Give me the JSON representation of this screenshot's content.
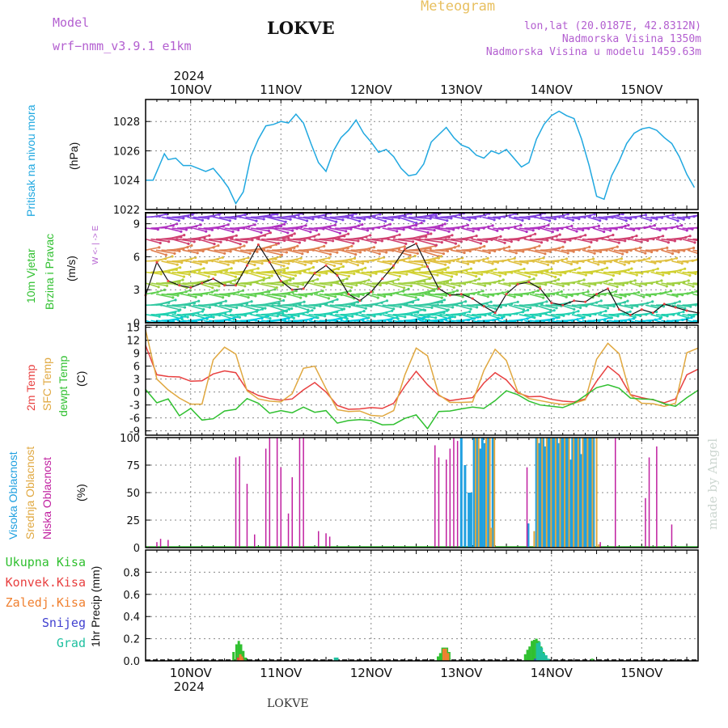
{
  "header": {
    "model_label": "Model",
    "model_name": "wrf−nmm_v3.9.1  e1km",
    "title": "LOKVE",
    "meteogram_label": "Meteogram",
    "lonlat": "lon,lat (20.0187E, 42.8312N)",
    "altitude": "Nadmorska Visina 1350m",
    "model_altitude": "Nadmorska Visina u modelu 1459.63m",
    "credit": "made by Angel",
    "footer_station": "LOKVE"
  },
  "colors": {
    "pressure": "#20a8e0",
    "t2m": "#e84040",
    "sfc": "#e0a840",
    "dewpt": "#30c030",
    "high_cloud": "#20a0e0",
    "mid_cloud": "#e0a840",
    "low_cloud": "#c020a0",
    "total_precip": "#30c030",
    "conv_precip": "#e84040",
    "frozen_precip": "#f08030",
    "snow": "#4040d0",
    "graupel": "#20c0a0"
  },
  "chart_data": [
    {
      "type": "line",
      "panel": "pressure",
      "ylabel_lines": [
        "Pritisak na nivou mora",
        "(hPa)"
      ],
      "year_label": "2024",
      "day_labels": [
        "10NOV",
        "11NOV",
        "12NOV",
        "13NOV",
        "14NOV",
        "15NOV"
      ],
      "day_label_hours": [
        12,
        36,
        60,
        84,
        108,
        132
      ],
      "x_hours_range": [
        0,
        147
      ],
      "ylim": [
        1022,
        1029.5
      ],
      "yticks": [
        1022,
        1024,
        1026,
        1028
      ],
      "x_hours": [
        0,
        2,
        4,
        5,
        6,
        8,
        10,
        12,
        14,
        16,
        18,
        20,
        22,
        24,
        26,
        28,
        30,
        32,
        34,
        36,
        38,
        40,
        42,
        44,
        46,
        48,
        50,
        52,
        54,
        56,
        58,
        60,
        62,
        64,
        66,
        68,
        70,
        72,
        74,
        76,
        78,
        80,
        82,
        84,
        86,
        88,
        90,
        92,
        94,
        96,
        98,
        100,
        102,
        104,
        106,
        108,
        110,
        112,
        114,
        116,
        118,
        120,
        122,
        124,
        126,
        128,
        130,
        132,
        134,
        136,
        138,
        140,
        142,
        144,
        146
      ],
      "values": [
        1024.0,
        1024.0,
        1025.2,
        1025.8,
        1025.4,
        1025.5,
        1025.0,
        1025.0,
        1024.8,
        1024.6,
        1024.8,
        1024.2,
        1023.5,
        1022.4,
        1023.2,
        1025.6,
        1026.8,
        1027.7,
        1027.8,
        1028.0,
        1027.9,
        1028.5,
        1027.9,
        1026.5,
        1025.2,
        1024.6,
        1026.0,
        1026.9,
        1027.4,
        1028.1,
        1027.2,
        1026.6,
        1025.9,
        1026.1,
        1025.6,
        1024.8,
        1024.3,
        1024.4,
        1025.1,
        1026.6,
        1027.1,
        1027.6,
        1026.9,
        1026.4,
        1026.2,
        1025.7,
        1025.5,
        1026.0,
        1025.8,
        1026.1,
        1025.5,
        1024.9,
        1025.2,
        1026.8,
        1027.8,
        1028.4,
        1028.7,
        1028.4,
        1028.2,
        1026.8,
        1025.0,
        1022.9,
        1022.7,
        1024.3,
        1025.3,
        1026.5,
        1027.2,
        1027.5,
        1027.6,
        1027.4,
        1026.9,
        1026.5,
        1025.6,
        1024.4,
        1023.5
      ]
    },
    {
      "type": "line",
      "panel": "wind",
      "ylabel_lines": [
        "10m Vjetar",
        "Brzina i Pravac",
        "(m/s)"
      ],
      "direction_legend": "W <- | -> E",
      "ylim": [
        0,
        10
      ],
      "yticks": [
        0,
        3,
        6,
        9
      ],
      "x_hours": [
        0,
        3,
        6,
        9,
        12,
        15,
        18,
        21,
        24,
        27,
        30,
        33,
        36,
        39,
        42,
        45,
        48,
        51,
        54,
        57,
        60,
        63,
        66,
        69,
        72,
        75,
        78,
        81,
        84,
        87,
        90,
        93,
        96,
        99,
        102,
        105,
        108,
        111,
        114,
        117,
        120,
        123,
        126,
        129,
        132,
        135,
        138,
        141,
        144,
        147
      ],
      "values": [
        2.5,
        5.5,
        3.8,
        3.4,
        3.2,
        3.6,
        4.0,
        3.4,
        3.4,
        5.2,
        7.1,
        5.5,
        3.8,
        3.0,
        3.1,
        4.5,
        5.2,
        4.3,
        2.6,
        2.0,
        2.8,
        4.0,
        5.2,
        6.7,
        7.2,
        5.1,
        3.1,
        2.5,
        2.6,
        2.2,
        1.5,
        0.9,
        2.6,
        3.5,
        3.7,
        3.1,
        1.8,
        1.6,
        2.0,
        1.9,
        2.6,
        3.1,
        1.2,
        0.7,
        1.2,
        0.9,
        1.7,
        1.4,
        1.1,
        0.9
      ]
    },
    {
      "type": "line",
      "panel": "temperature",
      "ylabel_lines": [
        "2m Temp",
        "SFC Temp",
        "dewpt Temp",
        "(C)"
      ],
      "ylim": [
        -10,
        15.5
      ],
      "yticks": [
        -9,
        -6,
        -3,
        0,
        3,
        6,
        9,
        12,
        15
      ],
      "x_hours": [
        0,
        3,
        6,
        9,
        12,
        15,
        18,
        21,
        24,
        27,
        30,
        33,
        36,
        39,
        42,
        45,
        48,
        51,
        54,
        57,
        60,
        63,
        66,
        69,
        72,
        75,
        78,
        81,
        84,
        87,
        90,
        93,
        96,
        99,
        102,
        105,
        108,
        111,
        114,
        117,
        120,
        123,
        126,
        129,
        132,
        135,
        138,
        141,
        144,
        147
      ],
      "series": [
        {
          "name": "2m Temp",
          "values": [
            10.8,
            4.0,
            3.6,
            3.5,
            2.5,
            2.6,
            4.2,
            4.9,
            4.5,
            0.5,
            -0.8,
            -1.5,
            -1.9,
            -1.6,
            0.5,
            2.2,
            0.0,
            -3.1,
            -4.0,
            -3.9,
            -3.6,
            -3.8,
            -2.6,
            1.4,
            4.8,
            1.7,
            -0.8,
            -2.0,
            -1.6,
            -1.3,
            2.1,
            4.5,
            2.8,
            -0.2,
            -1.1,
            -1.0,
            -1.7,
            -2.1,
            -2.3,
            -1.6,
            2.5,
            6.0,
            3.9,
            -0.6,
            -1.3,
            -1.8,
            -2.5,
            -1.6,
            4.0,
            5.3
          ]
        },
        {
          "name": "SFC Temp",
          "values": [
            14.4,
            3.0,
            0.5,
            -1.4,
            -2.8,
            -2.8,
            7.5,
            10.4,
            8.8,
            0.3,
            -1.6,
            -2.1,
            -2.3,
            -0.4,
            5.5,
            6.0,
            0.8,
            -4.1,
            -4.5,
            -4.4,
            -5.4,
            -5.6,
            -4.3,
            4.0,
            10.2,
            8.4,
            -0.6,
            -2.4,
            -2.4,
            -2.3,
            5.0,
            9.9,
            7.3,
            0.1,
            -1.5,
            -2.0,
            -2.5,
            -2.9,
            -2.6,
            -1.8,
            7.6,
            11.3,
            8.9,
            -0.7,
            -2.6,
            -2.7,
            -3.3,
            -2.6,
            9.1,
            10.2
          ]
        },
        {
          "name": "dewpt Temp",
          "values": [
            0.6,
            -2.5,
            -1.6,
            -5.5,
            -3.8,
            -6.5,
            -6.2,
            -4.4,
            -4.0,
            -1.5,
            -2.6,
            -4.9,
            -4.3,
            -4.8,
            -3.5,
            -4.7,
            -4.3,
            -7.2,
            -6.6,
            -6.4,
            -6.6,
            -7.6,
            -7.5,
            -6.1,
            -5.3,
            -8.5,
            -4.5,
            -4.4,
            -3.9,
            -3.5,
            -3.8,
            -2.0,
            0.3,
            -0.6,
            -2.1,
            -3.0,
            -3.3,
            -3.6,
            -2.6,
            -0.8,
            1.0,
            1.7,
            0.9,
            -1.4,
            -1.6,
            -1.7,
            -2.7,
            -3.3,
            -1.3,
            0.4
          ]
        }
      ]
    },
    {
      "type": "bar",
      "panel": "cloud",
      "ylabel_lines": [
        "Visoka Oblacnost",
        "Srednja Oblacnost",
        "Niska Oblacnost",
        "(%)"
      ],
      "ylim": [
        0,
        100
      ],
      "yticks": [
        0,
        25,
        50,
        75,
        100
      ],
      "series": [
        {
          "name": "Visoka Oblacnost",
          "bars": [
            [
              84,
              100
            ],
            [
              85,
              75
            ],
            [
              86,
              50
            ],
            [
              86.6,
              50
            ],
            [
              87.4,
              100
            ],
            [
              88.2,
              100
            ],
            [
              89,
              90
            ],
            [
              89.6,
              100
            ],
            [
              90.2,
              95
            ],
            [
              91.2,
              100
            ],
            [
              92.4,
              100
            ],
            [
              101.8,
              22
            ],
            [
              104,
              100
            ],
            [
              104.6,
              95
            ],
            [
              105.2,
              100
            ],
            [
              105.8,
              100
            ],
            [
              106.4,
              92
            ],
            [
              107,
              100
            ],
            [
              107.6,
              100
            ],
            [
              108.2,
              100
            ],
            [
              108.8,
              100
            ],
            [
              109.4,
              100
            ],
            [
              110,
              95
            ],
            [
              110.6,
              100
            ],
            [
              111.2,
              100
            ],
            [
              111.8,
              100
            ],
            [
              112.4,
              100
            ],
            [
              113,
              80
            ],
            [
              113.6,
              100
            ],
            [
              114.2,
              100
            ],
            [
              114.8,
              100
            ],
            [
              115.4,
              100
            ],
            [
              116,
              85
            ],
            [
              116.6,
              100
            ],
            [
              117.2,
              100
            ],
            [
              118,
              100
            ],
            [
              118.6,
              100
            ],
            [
              119.2,
              100
            ]
          ]
        },
        {
          "name": "Srednja Oblacnost",
          "bars": [
            [
              87.8,
              100
            ],
            [
              88.6,
              100
            ],
            [
              90.6,
              100
            ],
            [
              91.6,
              100
            ],
            [
              92.0,
              18
            ],
            [
              92.8,
              100
            ],
            [
              103.4,
              15
            ],
            [
              104.3,
              100
            ],
            [
              105.5,
              100
            ],
            [
              106.7,
              100
            ],
            [
              107.9,
              100
            ],
            [
              109.1,
              100
            ],
            [
              110.3,
              100
            ],
            [
              111.5,
              100
            ],
            [
              112.7,
              100
            ],
            [
              113.9,
              100
            ],
            [
              115.1,
              100
            ],
            [
              116.3,
              100
            ],
            [
              117.6,
              100
            ],
            [
              118.9,
              100
            ],
            [
              120.0,
              100
            ],
            [
              120.6,
              3
            ]
          ]
        },
        {
          "name": "Niska Oblacnost",
          "bars": [
            [
              1,
              1
            ],
            [
              3,
              5
            ],
            [
              4,
              8
            ],
            [
              6,
              7
            ],
            [
              24,
              82
            ],
            [
              25,
              83
            ],
            [
              27,
              58
            ],
            [
              29,
              12
            ],
            [
              32,
              90
            ],
            [
              33,
              100
            ],
            [
              35,
              100
            ],
            [
              36,
              73
            ],
            [
              38,
              31
            ],
            [
              39,
              64
            ],
            [
              41,
              100
            ],
            [
              42,
              100
            ],
            [
              46,
              15
            ],
            [
              48,
              13
            ],
            [
              49,
              10
            ],
            [
              77,
              93
            ],
            [
              78,
              82
            ],
            [
              80,
              80
            ],
            [
              81,
              90
            ],
            [
              82,
              100
            ],
            [
              83,
              97
            ],
            [
              101.5,
              73
            ],
            [
              121,
              5
            ],
            [
              125,
              100
            ],
            [
              133,
              45
            ],
            [
              134,
              82
            ],
            [
              136,
              92
            ],
            [
              140,
              21
            ]
          ]
        }
      ]
    },
    {
      "type": "bar",
      "panel": "precipitation",
      "ylabel": "1hr Precip (mm)",
      "legend": [
        "Ukupna Kisa",
        "Konvek.Kisa",
        "Zaledj.Kisa",
        "Snijeg",
        "Grad"
      ],
      "ylim": [
        0,
        1
      ],
      "yticks": [
        0.0,
        0.2,
        0.4,
        0.6,
        0.8
      ],
      "series": [
        {
          "name": "Ukupna Kisa",
          "bars": [
            [
              23.4,
              0.08
            ],
            [
              24.2,
              0.15
            ],
            [
              24.8,
              0.18
            ],
            [
              25.4,
              0.15
            ],
            [
              26.0,
              0.09
            ],
            [
              26.6,
              0.03
            ],
            [
              77.8,
              0.04
            ],
            [
              78.4,
              0.07
            ],
            [
              79.0,
              0.12
            ],
            [
              79.6,
              0.12
            ],
            [
              80.2,
              0.12
            ],
            [
              80.8,
              0.08
            ],
            [
              101.0,
              0.06
            ],
            [
              101.6,
              0.1
            ],
            [
              102.2,
              0.13
            ],
            [
              102.8,
              0.18
            ],
            [
              103.4,
              0.19
            ],
            [
              104.0,
              0.2
            ],
            [
              104.6,
              0.18
            ],
            [
              105.2,
              0.13
            ],
            [
              105.8,
              0.08
            ],
            [
              106.4,
              0.04
            ],
            [
              118.8,
              0.02
            ]
          ]
        },
        {
          "name": "Konvek.Kisa",
          "bars": [
            [
              24.6,
              0.03
            ],
            [
              25.8,
              0.02
            ],
            [
              80.4,
              0.04
            ]
          ]
        },
        {
          "name": "Zaledj.Kisa",
          "bars": [
            [
              25.2,
              0.06
            ],
            [
              25.6,
              0.04
            ],
            [
              79.3,
              0.11
            ],
            [
              79.9,
              0.11
            ],
            [
              80.5,
              0.07
            ]
          ]
        },
        {
          "name": "Snijeg",
          "bars": [
            [
              103.7,
              0.02
            ]
          ]
        },
        {
          "name": "Grad",
          "bars": [
            [
              50.4,
              0.03
            ],
            [
              51.0,
              0.03
            ],
            [
              104.2,
              0.16
            ],
            [
              104.8,
              0.17
            ],
            [
              105.4,
              0.12
            ],
            [
              106.0,
              0.07
            ],
            [
              106.6,
              0.05
            ],
            [
              107.2,
              0.02
            ]
          ]
        }
      ]
    }
  ]
}
